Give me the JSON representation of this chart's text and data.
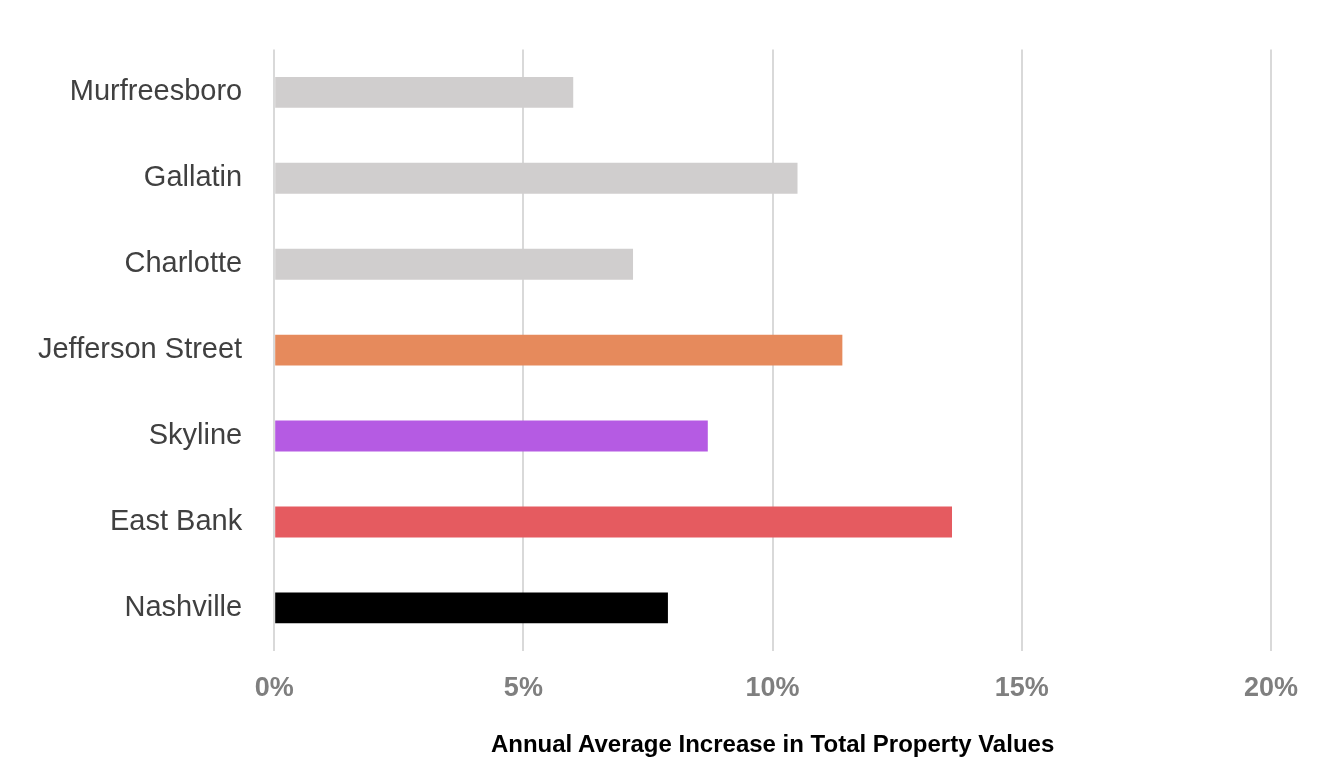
{
  "chart_data": {
    "type": "bar",
    "orientation": "horizontal",
    "xlabel": "Annual Average Increase in Total Property Values",
    "categories": [
      "Murfreesboro",
      "Gallatin",
      "Charlotte",
      "Jefferson Street",
      "Skyline",
      "East Bank",
      "Nashville"
    ],
    "values": [
      6.0,
      10.5,
      7.2,
      11.4,
      8.7,
      13.6,
      7.9
    ],
    "colors": [
      "#d0cece",
      "#d0cece",
      "#d0cece",
      "#e68a5c",
      "#b55be3",
      "#e55b60",
      "#000000"
    ],
    "xlim": [
      0,
      20
    ],
    "xticks": [
      {
        "value": 0,
        "label": "0%"
      },
      {
        "value": 5,
        "label": "5%"
      },
      {
        "value": 10,
        "label": "10%"
      },
      {
        "value": 15,
        "label": "15%"
      },
      {
        "value": 20,
        "label": "20%"
      }
    ],
    "grid": "x",
    "legend": false
  }
}
